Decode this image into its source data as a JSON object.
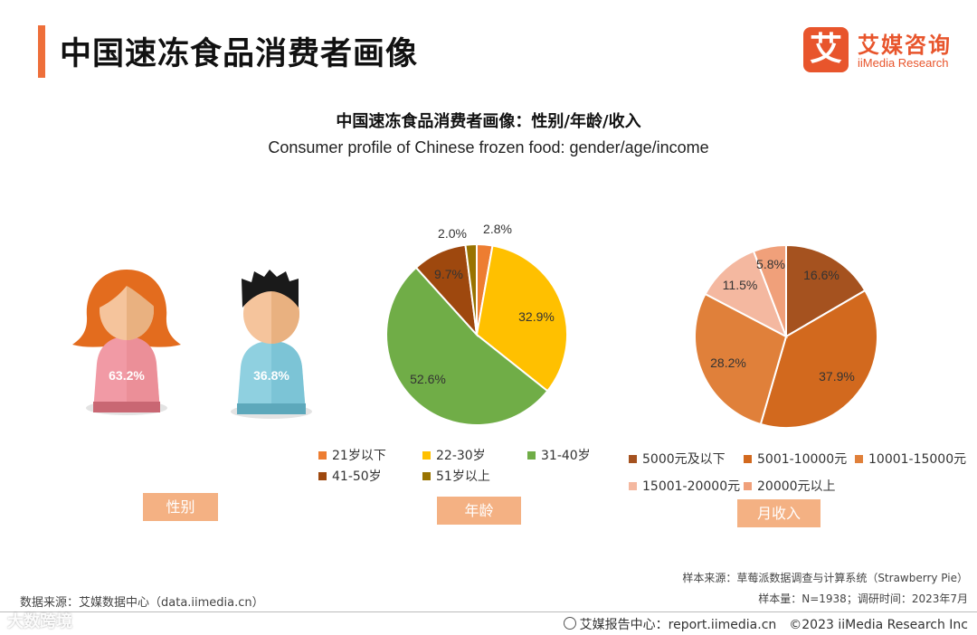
{
  "page_title": "中国速冻食品消费者画像",
  "logo": {
    "mark": "艾",
    "name_cn": "艾媒咨询",
    "name_en": "iiMedia Research"
  },
  "chart_title_cn": "中国速冻食品消费者画像：性别/年龄/收入",
  "chart_title_en": "Consumer profile of Chinese frozen food: gender/age/income",
  "chart_data": [
    {
      "type": "pictogram",
      "tag": "性别",
      "series": [
        {
          "label": "63.2%",
          "value": 63.2,
          "color": "#f0a0a8"
        },
        {
          "label": "36.8%",
          "value": 36.8,
          "color": "#8fd0e0"
        }
      ]
    },
    {
      "type": "pie",
      "tag": "年龄",
      "categories": [
        "21岁以下",
        "22-30岁",
        "31-40岁",
        "41-50岁",
        "51岁以上"
      ],
      "values": [
        2.8,
        32.9,
        52.6,
        9.7,
        2.0
      ],
      "labels": [
        "2.8%",
        "32.9%",
        "52.6%",
        "9.7%",
        "2.0%"
      ],
      "colors": [
        "#ed7d31",
        "#ffc000",
        "#70ad47",
        "#9e480e",
        "#997300"
      ]
    },
    {
      "type": "pie",
      "tag": "月收入",
      "categories": [
        "5000元及以下",
        "5001-10000元",
        "10001-15000元",
        "15001-20000元",
        "20000元以上"
      ],
      "values": [
        16.6,
        37.9,
        28.2,
        11.5,
        5.8
      ],
      "labels": [
        "16.6%",
        "37.9%",
        "28.2%",
        "11.5%",
        "5.8%"
      ],
      "colors": [
        "#a5521f",
        "#d2691e",
        "#e0803a",
        "#f4b8a0",
        "#f0a07a"
      ]
    }
  ],
  "source": "数据来源：艾媒数据中心（data.iimedia.cn）",
  "sample_source": "样本来源：草莓派数据调查与计算系统（Strawberry Pie）",
  "sample_size": "样本量：N=1938；调研时间：2023年7月",
  "footer": "艾媒报告中心：report.iimedia.cn　©2023  iiMedia Research  Inc",
  "watermark": "大数跨境"
}
